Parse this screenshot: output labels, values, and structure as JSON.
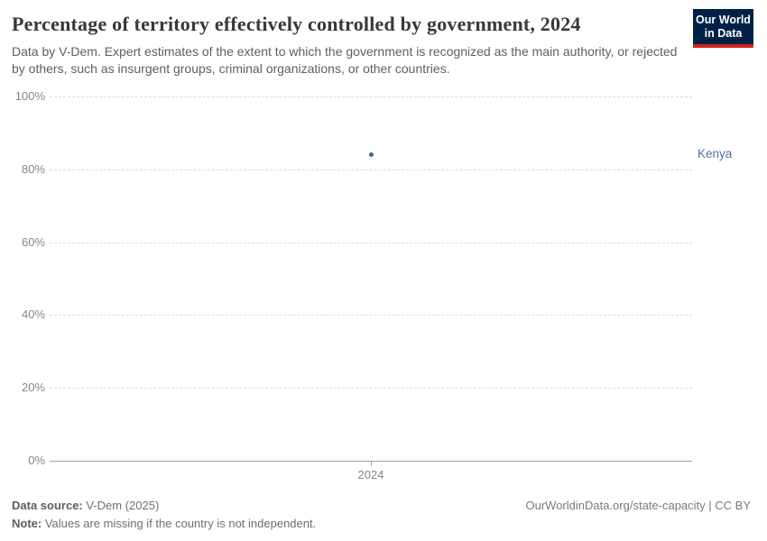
{
  "header": {
    "title": "Percentage of territory effectively controlled by government, 2024",
    "subtitle": "Data by V-Dem. Expert estimates of the extent to which the government is recognized as the main authority, or rejected by others, such as insurgent groups, criminal organizations, or other countries.",
    "logo": {
      "line1": "Our World",
      "line2": "in Data",
      "bg_color": "#002147",
      "accent_color": "#CE261E"
    }
  },
  "chart_data": {
    "type": "scatter",
    "title": "Percentage of territory effectively controlled by government, 2024",
    "x": [
      2024
    ],
    "x_tick_labels": [
      "2024"
    ],
    "series": [
      {
        "name": "Kenya",
        "x": 2024,
        "value": 84,
        "point_color": "#3d66a5",
        "label_color": "#4c6fa8"
      }
    ],
    "ylim": [
      0,
      100
    ],
    "y_ticks": [
      0,
      20,
      40,
      60,
      80,
      100
    ],
    "y_tick_labels": [
      "0%",
      "20%",
      "40%",
      "60%",
      "80%",
      "100%"
    ],
    "grid": "horizontal-dashed",
    "legend_position": "right-of-plot"
  },
  "footer": {
    "source_label": "Data source:",
    "source_value": " V-Dem (2025)",
    "note_label": "Note:",
    "note_value": " Values are missing if the country is not independent.",
    "license": "OurWorldinData.org/state-capacity | CC BY"
  }
}
